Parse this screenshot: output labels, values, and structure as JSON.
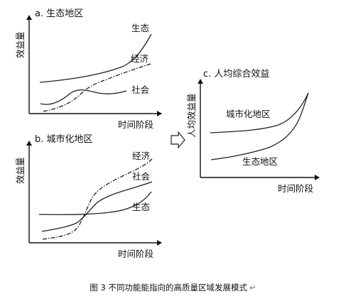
{
  "panel_a": {
    "title": "a. 生态地区",
    "ylabel": "效益量",
    "xlabel": "时间阶段",
    "series": {
      "ecology": "生态",
      "economy": "经济",
      "society": "社会"
    }
  },
  "panel_b": {
    "title": "b. 城市化地区",
    "ylabel": "效益量",
    "xlabel": "时间阶段",
    "series": {
      "economy": "经济",
      "society": "社会",
      "ecology": "生态"
    }
  },
  "panel_c": {
    "title": "c. 人均综合效益",
    "ylabel": "人均效益量",
    "xlabel": "时间阶段",
    "series": {
      "urban": "城市化地区",
      "ecological": "生态地区"
    }
  },
  "caption": {
    "text": "图 3  不同功能能指向的高质量区域发展模式",
    "return_mark": "↵"
  },
  "icons": {
    "arrow": "hollow-right-arrow-icon"
  },
  "line_styles": {
    "ecology": "solid",
    "economy": "dash-dot",
    "society": "solid"
  }
}
